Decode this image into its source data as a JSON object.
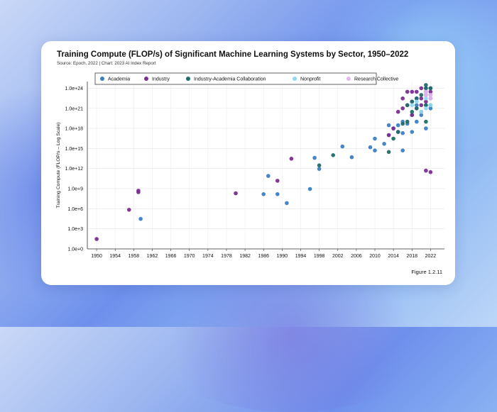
{
  "title": "Training Compute (FLOP/s) of Significant Machine Learning Systems by Sector, 1950–2022",
  "subtitle": "Source: Epoch, 2022 | Chart: 2023 AI Index Report",
  "figure_label": "Figure 1.2.11",
  "chart_data": {
    "type": "scatter",
    "ylabel": "Training Compute (FLOP/s – Log Scale)",
    "xlabel": "",
    "y_scale": "log",
    "ylim": [
      1,
      1e+25
    ],
    "xlim": [
      1948,
      2025
    ],
    "x_ticks": [
      "1950",
      "1954",
      "1958",
      "1962",
      "1966",
      "1970",
      "1974",
      "1978",
      "1982",
      "1986",
      "1990",
      "1994",
      "1998",
      "2002",
      "2006",
      "2010",
      "2014",
      "2018",
      "2022"
    ],
    "y_ticks": [
      "1.0e+0",
      "1.0e+3",
      "1.0e+6",
      "1.0e+9",
      "1.0e+12",
      "1.0e+15",
      "1.0e+18",
      "1.0e+21",
      "1.0e+24"
    ],
    "grid": true,
    "legend_position": "top",
    "series": [
      {
        "name": "Academia",
        "color": "#3a7fc4",
        "points": [
          [
            1959.5,
            30000.0
          ],
          [
            1986,
            150000000.0
          ],
          [
            1987,
            80000000000.0
          ],
          [
            1989,
            150000000.0
          ],
          [
            1991,
            7000000.0
          ],
          [
            1996,
            900000000.0
          ],
          [
            1997,
            40000000000000.0
          ],
          [
            1998,
            900000000000.0
          ],
          [
            2003,
            2000000000000000.0
          ],
          [
            2005,
            50000000000000.0
          ],
          [
            2009,
            1500000000000000.0
          ],
          [
            2010,
            500000000000000.0
          ],
          [
            2010,
            3e+16
          ],
          [
            2012,
            5000000000000000.0
          ],
          [
            2013,
            1e+17
          ],
          [
            2013,
            3e+18
          ],
          [
            2014,
            1e+18
          ],
          [
            2015,
            3e+18
          ],
          [
            2016,
            2e+17
          ],
          [
            2016,
            1e+19
          ],
          [
            2016,
            500000000000000.0
          ],
          [
            2017,
            5e+18
          ],
          [
            2018,
            1e+20
          ],
          [
            2018,
            3e+17
          ],
          [
            2019,
            1e+19
          ],
          [
            2019,
            3e+21
          ],
          [
            2020,
            1e+20
          ],
          [
            2021,
            1e+18
          ],
          [
            2021,
            3e+21
          ],
          [
            2022,
            1e+21
          ]
        ]
      },
      {
        "name": "Industry",
        "color": "#7b2d91",
        "points": [
          [
            1950,
            30
          ],
          [
            1957,
            700000.0
          ],
          [
            1959,
            300000000.0
          ],
          [
            1959,
            500000000.0
          ],
          [
            1980,
            200000000.0
          ],
          [
            1989,
            15000000000.0
          ],
          [
            1992,
            30000000000000.0
          ],
          [
            2013,
            1e+17
          ],
          [
            2014,
            1e+18
          ],
          [
            2015,
            3e+17
          ],
          [
            2015,
            3e+20
          ],
          [
            2016,
            1e+21
          ],
          [
            2016,
            3e+22
          ],
          [
            2017,
            3e+21
          ],
          [
            2017,
            3e+23
          ],
          [
            2018,
            1e+22
          ],
          [
            2018,
            1e+20
          ],
          [
            2018,
            3e+23
          ],
          [
            2019,
            3e+22
          ],
          [
            2019,
            1e+21
          ],
          [
            2019,
            3e+23
          ],
          [
            2020,
            3e+21
          ],
          [
            2020,
            3e+22
          ],
          [
            2020,
            1e+24
          ],
          [
            2021,
            1e+22
          ],
          [
            2021,
            1e+23
          ],
          [
            2021,
            3e+23
          ],
          [
            2021,
            1e+24
          ],
          [
            2021,
            500000000000.0
          ],
          [
            2022,
            3e+22
          ],
          [
            2022,
            1e+23
          ],
          [
            2022,
            3e+23
          ],
          [
            2022,
            1e+24
          ],
          [
            2022,
            300000000000.0
          ]
        ]
      },
      {
        "name": "Industry-Academia Collaboration",
        "color": "#1f6e6a",
        "points": [
          [
            1998,
            3000000000000.0
          ],
          [
            2001,
            100000000000000.0
          ],
          [
            2013,
            300000000000000.0
          ],
          [
            2014,
            3e+16
          ],
          [
            2015,
            3e+17
          ],
          [
            2016,
            5e+18
          ],
          [
            2017,
            1e+19
          ],
          [
            2017,
            3e+21
          ],
          [
            2018,
            3e+20
          ],
          [
            2018,
            1e+22
          ],
          [
            2019,
            1e+21
          ],
          [
            2019,
            3e+22
          ],
          [
            2020,
            3e+20
          ],
          [
            2020,
            1e+23
          ],
          [
            2021,
            1e+19
          ],
          [
            2021,
            3e+21
          ],
          [
            2021,
            1e+24
          ],
          [
            2021,
            3e+24
          ],
          [
            2022,
            3e+21
          ],
          [
            2022,
            1e+24
          ]
        ]
      },
      {
        "name": "Nonprofit",
        "color": "#8fd8f0",
        "points": [
          [
            2018,
            3e+21
          ],
          [
            2019,
            1e+22
          ],
          [
            2020,
            3e+20
          ],
          [
            2021,
            1e+21
          ],
          [
            2021,
            3e+22
          ],
          [
            2022,
            3e+21
          ]
        ]
      },
      {
        "name": "Research Collective",
        "color": "#e1b8ea",
        "points": [
          [
            2021,
            1e+23
          ],
          [
            2021,
            3e+23
          ],
          [
            2022,
            1e+23
          ],
          [
            2022,
            3e+22
          ]
        ]
      }
    ]
  }
}
